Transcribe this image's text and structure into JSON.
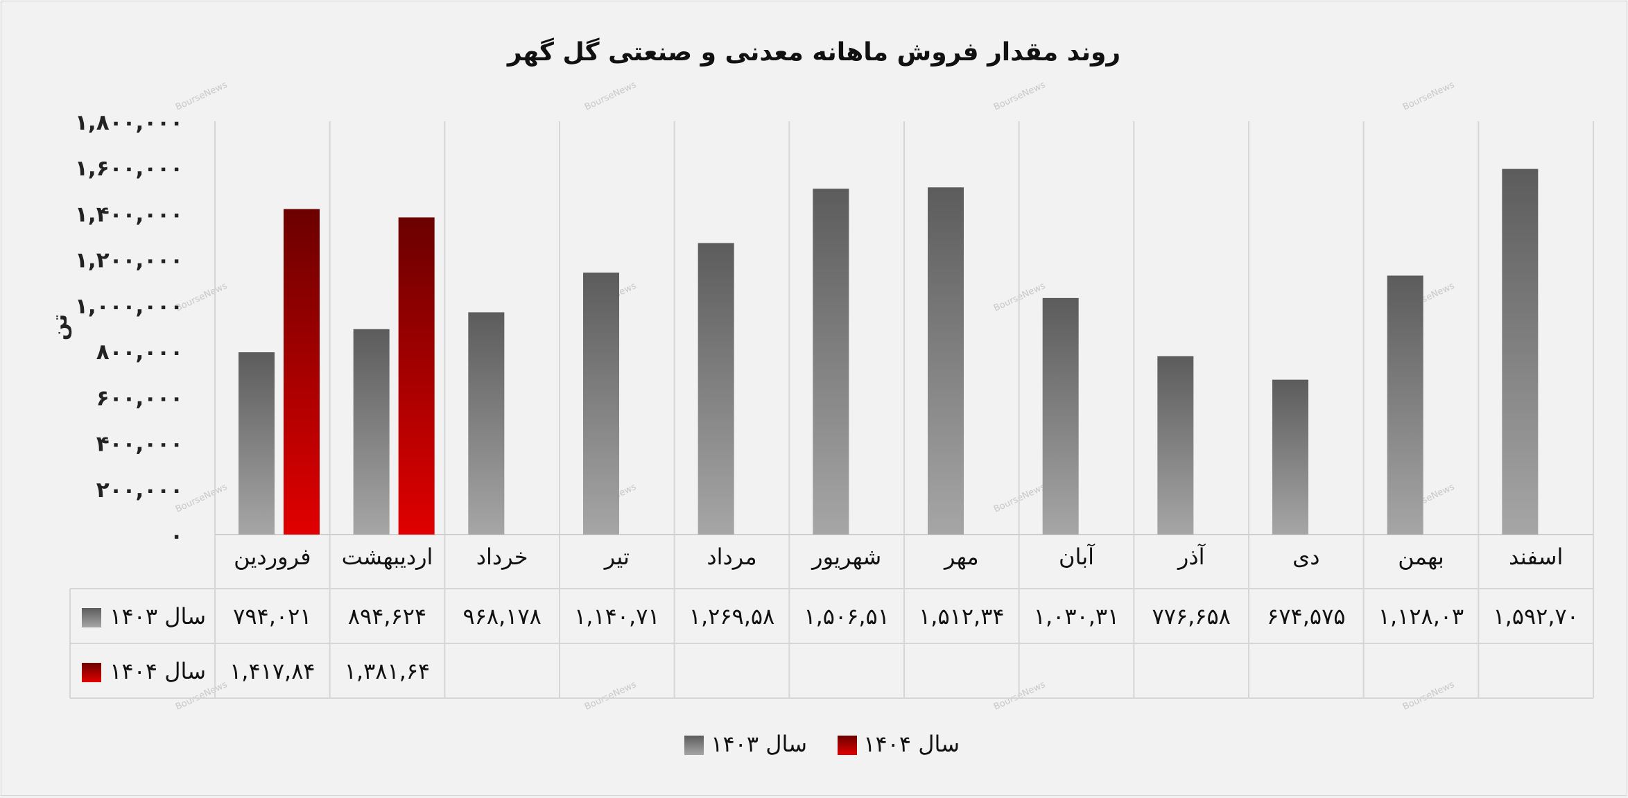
{
  "chart_data": {
    "type": "bar",
    "title": "روند مقدار فروش ماهانه معدنی و صنعتی گل گهر",
    "ylabel": "تن",
    "ylim": [
      0,
      1800000
    ],
    "yticks": [
      0,
      200000,
      400000,
      600000,
      800000,
      1000000,
      1200000,
      1400000,
      1600000,
      1800000
    ],
    "ytick_labels": [
      "۰",
      "۲۰۰,۰۰۰",
      "۴۰۰,۰۰۰",
      "۶۰۰,۰۰۰",
      "۸۰۰,۰۰۰",
      "۱,۰۰۰,۰۰۰",
      "۱,۲۰۰,۰۰۰",
      "۱,۴۰۰,۰۰۰",
      "۱,۶۰۰,۰۰۰",
      "۱,۸۰۰,۰۰۰"
    ],
    "categories": [
      "فروردین",
      "اردیبهشت",
      "خرداد",
      "تیر",
      "مرداد",
      "شهریور",
      "مهر",
      "آبان",
      "آذر",
      "دی",
      "بهمن",
      "اسفند"
    ],
    "series": [
      {
        "name": "سال ۱۴۰۳",
        "color": "#7f7f7f",
        "values": [
          794021,
          894624,
          968178,
          1140710,
          1269580,
          1506510,
          1512340,
          1030310,
          776658,
          674575,
          1128030,
          1592700
        ],
        "labels": [
          "۷۹۴,۰۲۱",
          "۸۹۴,۶۲۴",
          "۹۶۸,۱۷۸",
          "۱,۱۴۰,۷۱",
          "۱,۲۶۹,۵۸",
          "۱,۵۰۶,۵۱",
          "۱,۵۱۲,۳۴",
          "۱,۰۳۰,۳۱",
          "۷۷۶,۶۵۸",
          "۶۷۴,۵۷۵",
          "۱,۱۲۸,۰۳",
          "۱,۵۹۲,۷۰"
        ]
      },
      {
        "name": "سال ۱۴۰۴",
        "color": "#c00000",
        "values": [
          1417840,
          1381640,
          null,
          null,
          null,
          null,
          null,
          null,
          null,
          null,
          null,
          null
        ],
        "labels": [
          "۱,۴۱۷,۸۴",
          "۱,۳۸۱,۶۴",
          "",
          "",
          "",
          "",
          "",
          "",
          "",
          "",
          "",
          ""
        ]
      }
    ],
    "grid": true,
    "legend": "bottom",
    "watermark": "BourseNews"
  }
}
